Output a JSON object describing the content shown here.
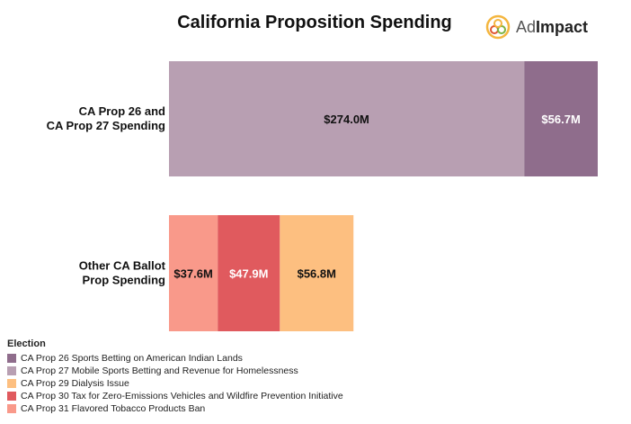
{
  "logo": {
    "text_ad": "Ad",
    "text_impact": "Impact"
  },
  "chart_data": {
    "type": "bar",
    "orientation": "horizontal",
    "stacked": true,
    "title": "California Proposition Spending",
    "unit_prefix": "$",
    "unit_suffix": "M",
    "categories": [
      [
        "CA Prop 26 and",
        "CA Prop 27 Spending"
      ],
      [
        "Other CA Ballot",
        "Prop Spending"
      ]
    ],
    "series": [
      {
        "name": "CA Prop 27 Mobile Sports Betting and Revenue for Homelessness",
        "color": "#b89fb2",
        "values": [
          274.0,
          null
        ],
        "labels": [
          "$274.0M",
          null
        ]
      },
      {
        "name": "CA Prop 26 Sports Betting on American Indian Lands",
        "color": "#8f6d8c",
        "values": [
          56.7,
          null
        ],
        "labels": [
          "$56.7M",
          null
        ]
      },
      {
        "name": "CA Prop 31 Flavored Tobacco Products Ban",
        "color": "#f9998a",
        "values": [
          null,
          37.6
        ],
        "labels": [
          null,
          "$37.6M"
        ]
      },
      {
        "name": "CA Prop 30 Tax for Zero-Emissions Vehicles and Wildfire Prevention Initiative",
        "color": "#e05a5e",
        "values": [
          null,
          47.9
        ],
        "labels": [
          null,
          "$47.9M"
        ]
      },
      {
        "name": "CA Prop 29 Dialysis Issue",
        "color": "#fdbf80",
        "values": [
          null,
          56.8
        ],
        "labels": [
          null,
          "$56.8M"
        ]
      }
    ],
    "xlim": [
      0,
      330.7
    ],
    "legend": {
      "title": "Election",
      "position": "bottom-left",
      "items": [
        {
          "label": "CA Prop 26 Sports Betting on American Indian Lands",
          "color": "#8f6d8c"
        },
        {
          "label": "CA Prop 27 Mobile Sports Betting and Revenue for Homelessness",
          "color": "#b89fb2"
        },
        {
          "label": "CA Prop 29 Dialysis Issue",
          "color": "#fdbf80"
        },
        {
          "label": "CA Prop 30 Tax for Zero-Emissions Vehicles and Wildfire Prevention Initiative",
          "color": "#e05a5e"
        },
        {
          "label": "CA Prop 31 Flavored Tobacco Products Ban",
          "color": "#f9998a"
        }
      ]
    }
  }
}
